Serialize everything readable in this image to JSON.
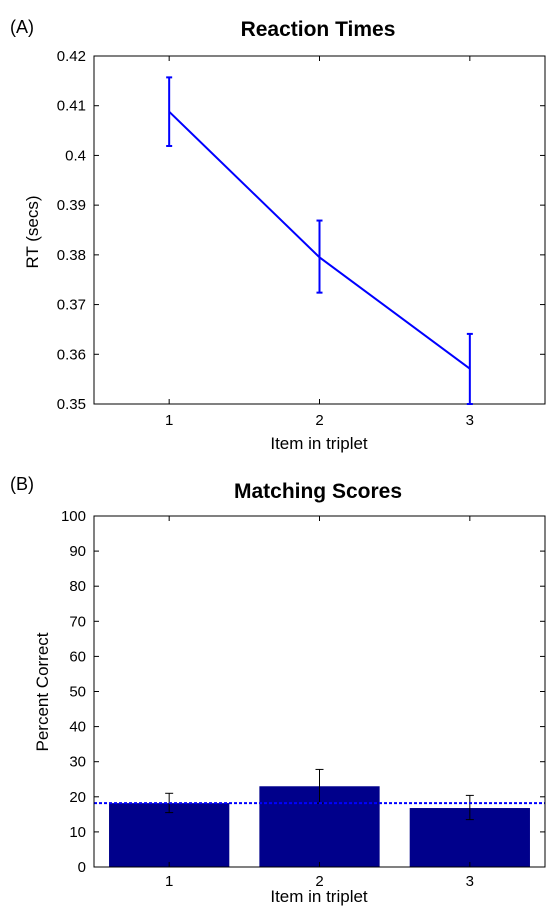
{
  "chart_data": [
    {
      "panel_label": "(A)",
      "type": "line",
      "title": "Reaction Times",
      "xlabel": "Item in triplet",
      "ylabel": "RT (secs)",
      "x": [
        1,
        2,
        3
      ],
      "x_tick_labels": [
        "1",
        "2",
        "3"
      ],
      "xlim": [
        0.5,
        3.5
      ],
      "ylim": [
        0.35,
        0.42
      ],
      "y_ticks": [
        0.35,
        0.36,
        0.37,
        0.38,
        0.39,
        0.4,
        0.41,
        0.42
      ],
      "y_tick_labels": [
        "0.35",
        "0.36",
        "0.37",
        "0.38",
        "0.39",
        "0.4",
        "0.41",
        "0.42"
      ],
      "series": [
        {
          "values": [
            0.4088,
            0.3795,
            0.3571
          ],
          "error_low": [
            0.4019,
            0.3724,
            0.35
          ],
          "error_high": [
            0.4157,
            0.3869,
            0.3641
          ]
        }
      ],
      "color": "#0000ff",
      "grid": false
    },
    {
      "panel_label": "(B)",
      "type": "bar",
      "title": "Matching Scores",
      "xlabel": "Item in triplet",
      "ylabel": "Percent Correct",
      "categories": [
        "1",
        "2",
        "3"
      ],
      "values": [
        18.2,
        23.0,
        16.8
      ],
      "error_low": [
        15.5,
        18.2,
        13.5
      ],
      "error_high": [
        21.0,
        27.8,
        20.4
      ],
      "reference_line": 18.2,
      "ylim": [
        0,
        100
      ],
      "y_ticks": [
        0,
        10,
        20,
        30,
        40,
        50,
        60,
        70,
        80,
        90,
        100
      ],
      "y_tick_labels": [
        "0",
        "10",
        "20",
        "30",
        "40",
        "50",
        "60",
        "70",
        "80",
        "90",
        "100"
      ],
      "bar_color": "#00008b",
      "reference_color": "#0000ff",
      "grid": false
    }
  ]
}
